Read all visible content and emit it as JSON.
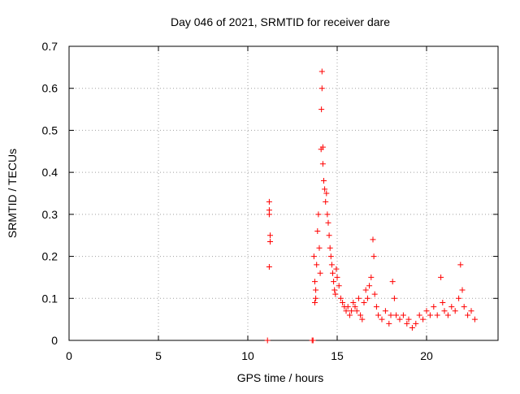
{
  "chart_data": {
    "type": "scatter",
    "title": "Day 046 of 2021, SRMTID for receiver dare",
    "xlabel": "GPS time / hours",
    "ylabel": "SRMTID / TECUs",
    "xlim": [
      0,
      24
    ],
    "ylim": [
      0,
      0.7
    ],
    "x_ticks": [
      0,
      5,
      10,
      15,
      20
    ],
    "x_tick_labels": [
      "0",
      "5",
      "10",
      "15",
      "20"
    ],
    "y_ticks": [
      0,
      0.1,
      0.2,
      0.3,
      0.4,
      0.5,
      0.6,
      0.7
    ],
    "y_tick_labels": [
      "0",
      "0.1",
      "0.2",
      "0.3",
      "0.4",
      "0.5",
      "0.6",
      "0.7"
    ],
    "grid": true,
    "marker": "plus",
    "series_color": "#ff0000",
    "series": [
      {
        "name": "SRMTID",
        "points": [
          [
            11.1,
            0.0
          ],
          [
            11.2,
            0.33
          ],
          [
            11.2,
            0.31
          ],
          [
            11.2,
            0.3
          ],
          [
            11.25,
            0.25
          ],
          [
            11.25,
            0.235
          ],
          [
            11.2,
            0.175
          ],
          [
            13.6,
            0.0
          ],
          [
            13.65,
            0.0
          ],
          [
            13.7,
            0.2
          ],
          [
            13.75,
            0.14
          ],
          [
            13.8,
            0.1
          ],
          [
            13.75,
            0.09
          ],
          [
            13.8,
            0.12
          ],
          [
            13.85,
            0.18
          ],
          [
            13.9,
            0.26
          ],
          [
            13.95,
            0.3
          ],
          [
            14.0,
            0.22
          ],
          [
            14.05,
            0.16
          ],
          [
            14.1,
            0.455
          ],
          [
            14.12,
            0.55
          ],
          [
            14.15,
            0.6
          ],
          [
            14.15,
            0.64
          ],
          [
            14.2,
            0.46
          ],
          [
            14.2,
            0.42
          ],
          [
            14.25,
            0.38
          ],
          [
            14.3,
            0.36
          ],
          [
            14.35,
            0.33
          ],
          [
            14.4,
            0.35
          ],
          [
            14.45,
            0.3
          ],
          [
            14.5,
            0.28
          ],
          [
            14.55,
            0.25
          ],
          [
            14.6,
            0.22
          ],
          [
            14.65,
            0.2
          ],
          [
            14.7,
            0.18
          ],
          [
            14.75,
            0.16
          ],
          [
            14.8,
            0.14
          ],
          [
            14.85,
            0.12
          ],
          [
            14.9,
            0.11
          ],
          [
            14.95,
            0.17
          ],
          [
            15.0,
            0.15
          ],
          [
            15.1,
            0.13
          ],
          [
            15.2,
            0.1
          ],
          [
            15.3,
            0.09
          ],
          [
            15.4,
            0.08
          ],
          [
            15.5,
            0.07
          ],
          [
            15.6,
            0.08
          ],
          [
            15.7,
            0.06
          ],
          [
            15.8,
            0.07
          ],
          [
            15.9,
            0.09
          ],
          [
            16.0,
            0.08
          ],
          [
            16.1,
            0.07
          ],
          [
            16.2,
            0.1
          ],
          [
            16.3,
            0.06
          ],
          [
            16.4,
            0.05
          ],
          [
            16.5,
            0.09
          ],
          [
            16.6,
            0.12
          ],
          [
            16.7,
            0.1
          ],
          [
            16.8,
            0.13
          ],
          [
            16.9,
            0.15
          ],
          [
            17.0,
            0.24
          ],
          [
            17.05,
            0.2
          ],
          [
            17.1,
            0.11
          ],
          [
            17.2,
            0.08
          ],
          [
            17.3,
            0.06
          ],
          [
            17.5,
            0.05
          ],
          [
            17.7,
            0.07
          ],
          [
            17.9,
            0.04
          ],
          [
            18.0,
            0.06
          ],
          [
            18.1,
            0.14
          ],
          [
            18.2,
            0.1
          ],
          [
            18.3,
            0.06
          ],
          [
            18.5,
            0.05
          ],
          [
            18.7,
            0.06
          ],
          [
            18.9,
            0.04
          ],
          [
            19.0,
            0.05
          ],
          [
            19.2,
            0.03
          ],
          [
            19.4,
            0.04
          ],
          [
            19.6,
            0.06
          ],
          [
            19.8,
            0.05
          ],
          [
            20.0,
            0.07
          ],
          [
            20.2,
            0.06
          ],
          [
            20.4,
            0.08
          ],
          [
            20.6,
            0.06
          ],
          [
            20.8,
            0.15
          ],
          [
            20.9,
            0.09
          ],
          [
            21.0,
            0.07
          ],
          [
            21.2,
            0.06
          ],
          [
            21.4,
            0.08
          ],
          [
            21.6,
            0.07
          ],
          [
            21.8,
            0.1
          ],
          [
            21.9,
            0.18
          ],
          [
            22.0,
            0.12
          ],
          [
            22.1,
            0.08
          ],
          [
            22.3,
            0.06
          ],
          [
            22.5,
            0.07
          ],
          [
            22.7,
            0.05
          ]
        ]
      }
    ]
  }
}
